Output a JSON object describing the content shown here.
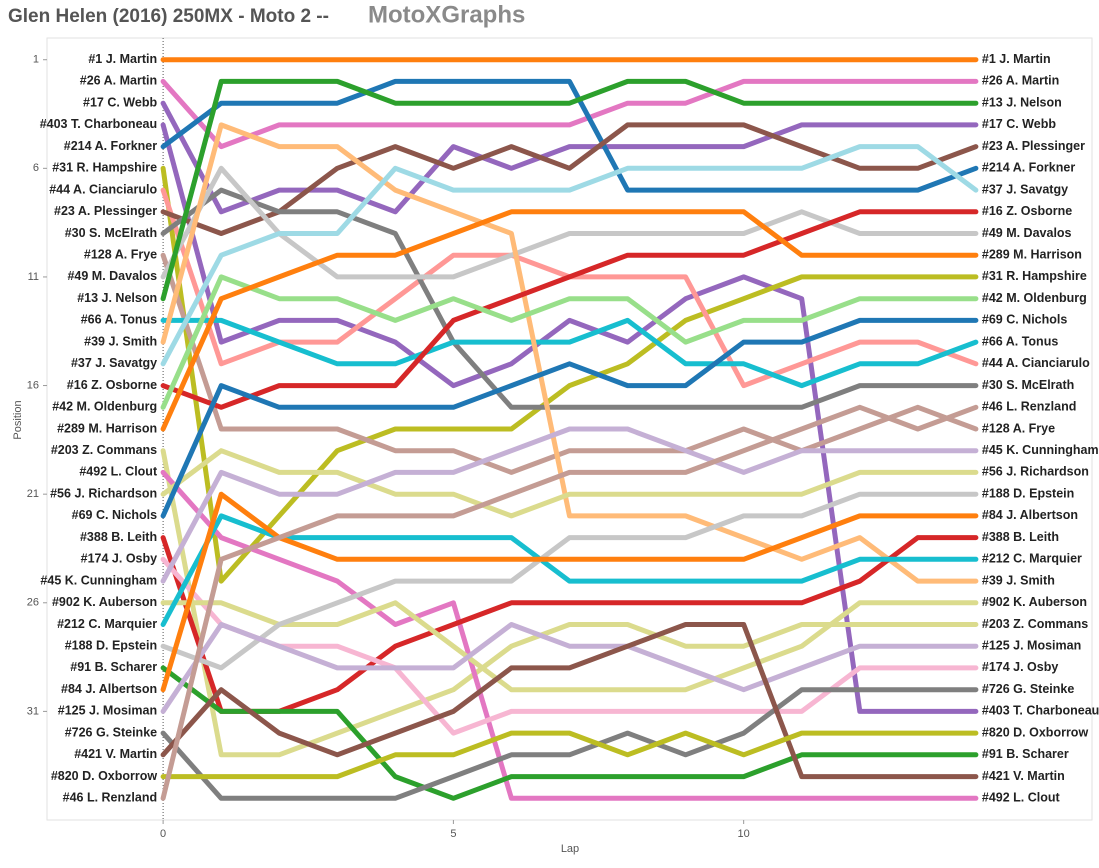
{
  "chart_data": {
    "type": "bump",
    "title": "Glen Helen (2016) 250MX - Moto 2 --",
    "brand": "MotoXGraphs",
    "xlabel": "Lap",
    "ylabel": "Position",
    "x": [
      0,
      1,
      2,
      3,
      4,
      5,
      6,
      7,
      8,
      9,
      10,
      11,
      12,
      13,
      14
    ],
    "xlim": [
      -2,
      16
    ],
    "xticks": [
      0,
      5,
      10
    ],
    "ylim": [
      0,
      36
    ],
    "yticks": [
      1,
      6,
      11,
      16,
      21,
      26,
      31
    ],
    "y_reversed": true,
    "series": [
      {
        "name": "#1 J. Martin",
        "color": "#ff7f0e",
        "values": [
          1,
          1,
          1,
          1,
          1,
          1,
          1,
          1,
          1,
          1,
          1,
          1,
          1,
          1,
          1
        ]
      },
      {
        "name": "#26 A. Martin",
        "color": "#e377c2",
        "values": [
          2,
          5,
          4,
          4,
          4,
          4,
          4,
          4,
          3,
          3,
          2,
          2,
          2,
          2,
          2
        ]
      },
      {
        "name": "#17 C. Webb",
        "color": "#9467bd",
        "values": [
          3,
          8,
          7,
          7,
          8,
          5,
          6,
          5,
          5,
          5,
          5,
          4,
          4,
          4,
          4
        ]
      },
      {
        "name": "#403 T. Charboneau",
        "color": "#9467bd",
        "values": [
          4,
          14,
          13,
          13,
          14,
          16,
          15,
          13,
          14,
          12,
          11,
          12,
          31,
          31,
          31
        ]
      },
      {
        "name": "#214 A. Forkner",
        "color": "#1f77b4",
        "values": [
          5,
          3,
          3,
          3,
          2,
          2,
          2,
          2,
          7,
          7,
          7,
          7,
          7,
          7,
          6
        ]
      },
      {
        "name": "#31 R. Hampshire",
        "color": "#bcbd22",
        "values": [
          6,
          25,
          22,
          19,
          18,
          18,
          18,
          16,
          15,
          13,
          12,
          11,
          11,
          11,
          11
        ]
      },
      {
        "name": "#44 A. Cianciarulo",
        "color": "#ff9896",
        "values": [
          7,
          15,
          14,
          14,
          12,
          10,
          10,
          11,
          11,
          11,
          16,
          15,
          14,
          14,
          15
        ]
      },
      {
        "name": "#23 A. Plessinger",
        "color": "#8c564b",
        "values": [
          8,
          9,
          8,
          6,
          5,
          6,
          5,
          6,
          4,
          4,
          4,
          5,
          6,
          6,
          5
        ]
      },
      {
        "name": "#30 S. McElrath",
        "color": "#7f7f7f",
        "values": [
          9,
          7,
          8,
          8,
          9,
          14,
          17,
          17,
          17,
          17,
          17,
          17,
          16,
          16,
          16
        ]
      },
      {
        "name": "#128 A. Frye",
        "color": "#c49c94",
        "values": [
          10,
          18,
          18,
          18,
          19,
          19,
          20,
          19,
          19,
          19,
          18,
          19,
          18,
          17,
          18
        ]
      },
      {
        "name": "#49 M. Davalos",
        "color": "#c7c7c7",
        "values": [
          11,
          6,
          9,
          11,
          11,
          11,
          10,
          9,
          9,
          9,
          9,
          8,
          9,
          9,
          9
        ]
      },
      {
        "name": "#13 J. Nelson",
        "color": "#2ca02c",
        "values": [
          12,
          2,
          2,
          2,
          3,
          3,
          3,
          3,
          2,
          2,
          3,
          3,
          3,
          3,
          3
        ]
      },
      {
        "name": "#66 A. Tonus",
        "color": "#17becf",
        "values": [
          13,
          13,
          14,
          15,
          15,
          14,
          14,
          14,
          13,
          15,
          15,
          16,
          15,
          15,
          14
        ]
      },
      {
        "name": "#39 J. Smith",
        "color": "#ffbb78",
        "values": [
          14,
          4,
          5,
          5,
          7,
          8,
          9,
          22,
          22,
          22,
          23,
          24,
          23,
          25,
          25
        ]
      },
      {
        "name": "#37 J. Savatgy",
        "color": "#9edae5",
        "values": [
          15,
          10,
          9,
          9,
          6,
          7,
          7,
          7,
          6,
          6,
          6,
          6,
          5,
          5,
          7
        ]
      },
      {
        "name": "#16 Z. Osborne",
        "color": "#d62728",
        "values": [
          16,
          17,
          16,
          16,
          16,
          13,
          12,
          11,
          10,
          10,
          10,
          9,
          8,
          8,
          8
        ]
      },
      {
        "name": "#42 M. Oldenburg",
        "color": "#98df8a",
        "values": [
          17,
          11,
          12,
          12,
          13,
          12,
          13,
          12,
          12,
          14,
          13,
          13,
          12,
          12,
          12
        ]
      },
      {
        "name": "#289 M. Harrison",
        "color": "#ff7f0e",
        "values": [
          18,
          12,
          11,
          10,
          10,
          9,
          8,
          8,
          8,
          8,
          8,
          10,
          10,
          10,
          10
        ]
      },
      {
        "name": "#203 Z. Commans",
        "color": "#dbdb8d",
        "values": [
          19,
          33,
          33,
          32,
          31,
          30,
          28,
          27,
          27,
          28,
          28,
          27,
          27,
          27,
          27
        ]
      },
      {
        "name": "#492 L. Clout",
        "color": "#e377c2",
        "values": [
          20,
          23,
          24,
          25,
          27,
          26,
          35,
          35,
          35,
          35,
          35,
          35,
          35,
          35,
          35
        ]
      },
      {
        "name": "#56 J. Richardson",
        "color": "#dbdb8d",
        "values": [
          21,
          19,
          20,
          20,
          21,
          21,
          22,
          21,
          21,
          21,
          21,
          21,
          20,
          20,
          20
        ]
      },
      {
        "name": "#69 C. Nichols",
        "color": "#1f77b4",
        "values": [
          22,
          16,
          17,
          17,
          17,
          17,
          16,
          15,
          16,
          16,
          14,
          14,
          13,
          13,
          13
        ]
      },
      {
        "name": "#388 B. Leith",
        "color": "#d62728",
        "values": [
          23,
          31,
          31,
          30,
          28,
          27,
          26,
          26,
          26,
          26,
          26,
          26,
          25,
          23,
          23
        ]
      },
      {
        "name": "#174 J. Osby",
        "color": "#f7b6d2",
        "values": [
          24,
          27,
          28,
          28,
          29,
          32,
          31,
          31,
          31,
          31,
          31,
          31,
          29,
          29,
          29
        ]
      },
      {
        "name": "#45 K. Cunningham",
        "color": "#c5b0d5",
        "values": [
          25,
          20,
          21,
          21,
          20,
          20,
          19,
          18,
          18,
          19,
          20,
          19,
          19,
          19,
          19
        ]
      },
      {
        "name": "#902 K. Auberson",
        "color": "#dbdb8d",
        "values": [
          26,
          26,
          27,
          27,
          26,
          28,
          30,
          30,
          30,
          30,
          29,
          28,
          26,
          26,
          26
        ]
      },
      {
        "name": "#212 C. Marquier",
        "color": "#17becf",
        "values": [
          27,
          22,
          23,
          23,
          23,
          23,
          23,
          25,
          25,
          25,
          25,
          25,
          24,
          24,
          24
        ]
      },
      {
        "name": "#188 D. Epstein",
        "color": "#c7c7c7",
        "values": [
          28,
          29,
          27,
          26,
          25,
          25,
          25,
          23,
          23,
          23,
          22,
          22,
          21,
          21,
          21
        ]
      },
      {
        "name": "#91 B. Scharer",
        "color": "#2ca02c",
        "values": [
          29,
          31,
          31,
          31,
          34,
          35,
          34,
          34,
          34,
          34,
          34,
          33,
          33,
          33,
          33
        ]
      },
      {
        "name": "#84 J. Albertson",
        "color": "#ff7f0e",
        "values": [
          30,
          21,
          23,
          24,
          24,
          24,
          24,
          24,
          24,
          24,
          24,
          23,
          22,
          22,
          22
        ]
      },
      {
        "name": "#125 J. Mosiman",
        "color": "#c5b0d5",
        "values": [
          31,
          27,
          28,
          29,
          29,
          29,
          27,
          28,
          28,
          29,
          30,
          29,
          28,
          28,
          28
        ]
      },
      {
        "name": "#726 G. Steinke",
        "color": "#7f7f7f",
        "values": [
          32,
          35,
          35,
          35,
          35,
          34,
          33,
          33,
          32,
          33,
          32,
          30,
          30,
          30,
          30
        ]
      },
      {
        "name": "#421 V. Martin",
        "color": "#8c564b",
        "values": [
          33,
          30,
          32,
          33,
          32,
          31,
          29,
          29,
          28,
          27,
          27,
          34,
          34,
          34,
          34
        ]
      },
      {
        "name": "#820 D. Oxborrow",
        "color": "#bcbd22",
        "values": [
          34,
          34,
          34,
          34,
          33,
          33,
          32,
          32,
          33,
          32,
          33,
          32,
          32,
          32,
          32
        ]
      },
      {
        "name": "#46 L. Renzland",
        "color": "#c49c94",
        "values": [
          35,
          24,
          23,
          22,
          22,
          22,
          21,
          20,
          20,
          20,
          19,
          18,
          17,
          18,
          17
        ]
      }
    ]
  }
}
